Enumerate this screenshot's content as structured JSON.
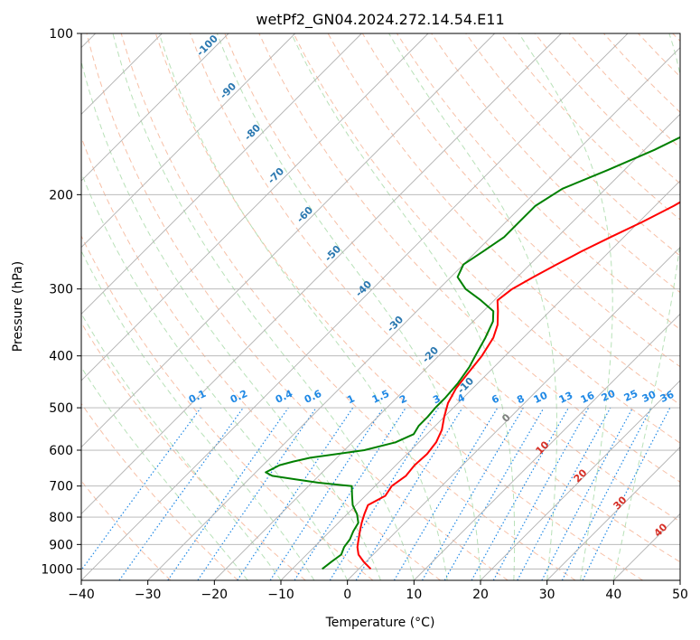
{
  "chart_data": {
    "type": "line",
    "title": "wetPf2_GN04.2024.272.14.54.E11",
    "xlabel": "Temperature (°C)",
    "ylabel": "Pressure (hPa)",
    "xlim": [
      -40,
      50
    ],
    "ylim": [
      1050,
      100
    ],
    "y_scale": "log",
    "grid": true,
    "x_ticks": [
      -40,
      -30,
      -20,
      -10,
      0,
      10,
      20,
      30,
      40,
      50
    ],
    "y_ticks": [
      100,
      200,
      300,
      400,
      500,
      600,
      700,
      800,
      900,
      1000
    ],
    "colors": {
      "temperature": "#ff0000",
      "dewpoint": "#008000",
      "grid": "#b0b0b0",
      "isotherm": "#b0b0b0",
      "dry_adiabat": "#f4a582",
      "moist_adiabat": "#a6d9a6",
      "mixing_ratio": "#1e88e5",
      "adiabat_labels": "#2b78b0",
      "moist_labels": "#d73027",
      "zero_label": "#808080"
    },
    "series": [
      {
        "key": "temperature",
        "p": [
          1000,
          970,
          940,
          910,
          880,
          850,
          820,
          790,
          760,
          730,
          700,
          670,
          640,
          610,
          580,
          550,
          520,
          490,
          460,
          430,
          400,
          370,
          350,
          330,
          315,
          300,
          285,
          270,
          255,
          240,
          225,
          210,
          195,
          180,
          165,
          150,
          135,
          120,
          110,
          100
        ],
        "t": [
          1.8,
          -0.3,
          -2.2,
          -3.5,
          -4.5,
          -5.5,
          -6.5,
          -7.4,
          -8.2,
          -7.0,
          -7.5,
          -6.9,
          -7.2,
          -7.0,
          -7.4,
          -8.4,
          -10.0,
          -11.5,
          -12.5,
          -13.0,
          -13.5,
          -14.5,
          -15.8,
          -17.8,
          -19.5,
          -19.0,
          -17.6,
          -16.0,
          -14.2,
          -12.0,
          -9.5,
          -7.2,
          -5.3,
          -3.5,
          -1.3,
          1.5,
          5.0,
          9.0,
          12.0,
          15.5
        ]
      },
      {
        "key": "dewpoint",
        "p": [
          1000,
          970,
          940,
          910,
          880,
          850,
          820,
          790,
          760,
          730,
          700,
          690,
          680,
          670,
          660,
          650,
          640,
          630,
          620,
          600,
          580,
          560,
          540,
          520,
          500,
          480,
          450,
          420,
          400,
          370,
          345,
          330,
          315,
          300,
          285,
          270,
          255,
          240,
          225,
          210,
          195,
          180,
          165,
          150,
          135,
          120,
          110,
          100
        ],
        "t": [
          -5.5,
          -5.2,
          -4.8,
          -5.5,
          -5.8,
          -6.5,
          -7.0,
          -8.5,
          -10.5,
          -12.0,
          -13.5,
          -19.0,
          -23.0,
          -27.0,
          -28.5,
          -28.0,
          -27.5,
          -26.0,
          -24.0,
          -17.0,
          -13.5,
          -12.0,
          -12.5,
          -12.5,
          -12.7,
          -12.7,
          -13.0,
          -13.7,
          -14.5,
          -15.7,
          -17.0,
          -18.5,
          -22.0,
          -26.0,
          -29.0,
          -30.0,
          -29.0,
          -28.0,
          -28.0,
          -28.0,
          -26.5,
          -22.5,
          -18.5,
          -15.0,
          -12.5,
          -9.5,
          -7.0,
          -3.5
        ]
      }
    ],
    "dry_adiabat_labels": [
      "-100",
      "-90",
      "-80",
      "-70",
      "-60",
      "-50",
      "-40",
      "-30",
      "-20",
      "-10"
    ],
    "mixing_ratio_labels": [
      "0.1",
      "0.2",
      "0.4",
      "0.6",
      "1",
      "1.5",
      "2",
      "3",
      "4",
      "6",
      "8",
      "10",
      "13",
      "16",
      "20",
      "25",
      "30",
      "36"
    ],
    "moist_adiabat_labels": [
      "0",
      "10",
      "20",
      "30",
      "40"
    ]
  }
}
